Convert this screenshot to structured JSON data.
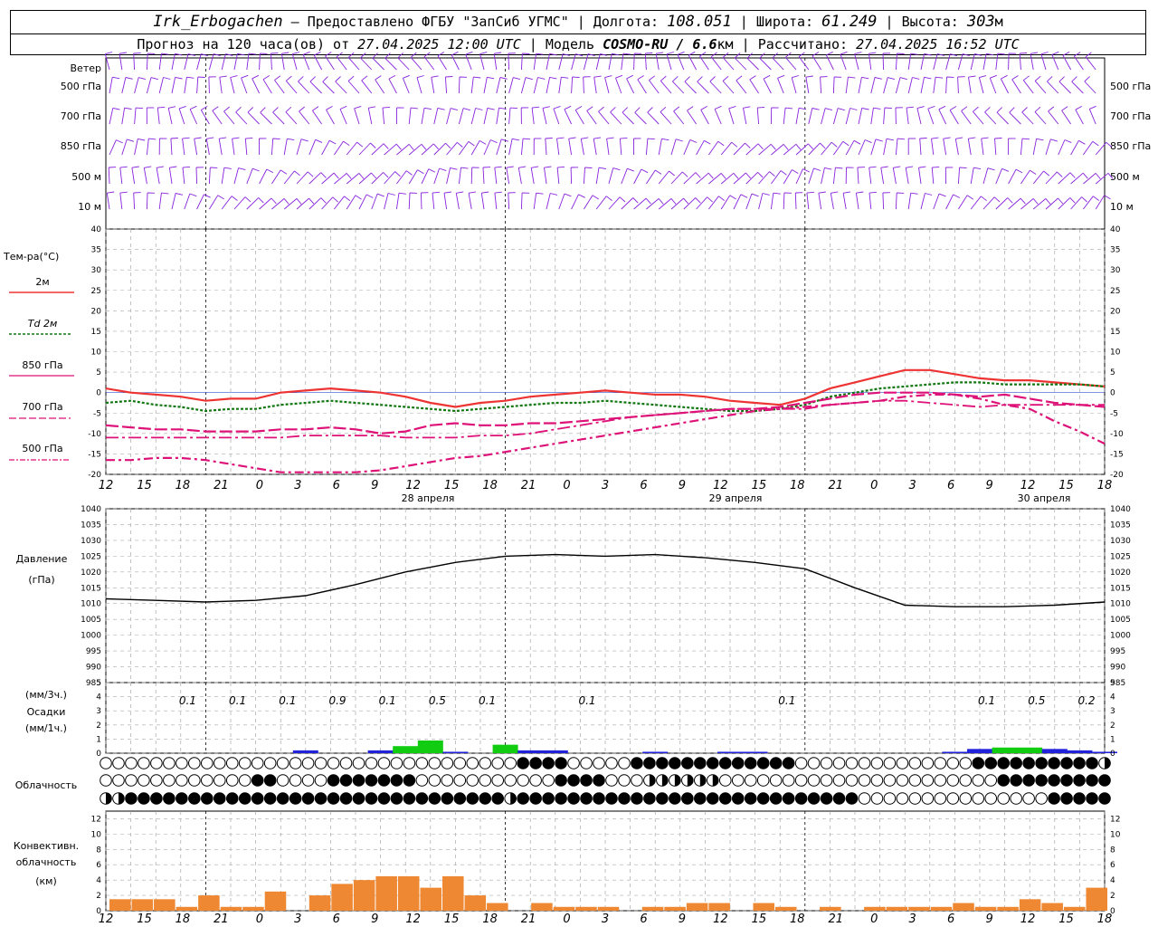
{
  "header": {
    "station": "Irk_Erbogachen",
    "provider": " – Предоставлено ФГБУ \"ЗапСиб УГМС\" ",
    "lon_label": "Долгота: ",
    "lon": "108.051",
    "lat_label": "Широта: ",
    "lat": "61.249",
    "alt_label": "Высота: ",
    "alt": "303",
    "alt_unit": "м",
    "fc_label": "Прогноз на 120 часа(ов) от ",
    "fc_start": "27.04.2025 12:00 UTC",
    "model_label": "Модель ",
    "model": "COSMO-RU / 6.6",
    "model_unit": "км",
    "calc_label": "Рассчитано: ",
    "calc_time": "27.04.2025 16:52 UTC"
  },
  "labels": {
    "wind": "Ветер",
    "wind_levels": [
      "500 гПа",
      "700 гПа",
      "850 гПа",
      "500  м",
      "10  м"
    ],
    "temp": "Тем-ра(°C)",
    "temp_series": [
      "2м",
      "Td  2м",
      "850 гПа",
      "700 гПа",
      "500 гПа"
    ],
    "pressure": [
      "Давление",
      "(гПа)"
    ],
    "precip": [
      "(мм/3ч.)",
      "Осадки",
      "(мм/1ч.)"
    ],
    "clouds": "Облачность",
    "conv": [
      "Конвективн.",
      "облачность",
      "(км)"
    ],
    "days": [
      "28 апреля",
      "29 апреля",
      "30 апреля"
    ]
  },
  "colors": {
    "t2m": "#ee3333",
    "td2m": "#117711",
    "t850": "#dd1177",
    "t700": "#dd1177",
    "t500": "#dd1177",
    "wind": "#8822dd",
    "precip_low": "#2222dd",
    "precip_high": "#11cc11",
    "conv": "#ee8833"
  },
  "chart_data": [
    {
      "type": "line",
      "title": "Тем-ра(°C)",
      "x_hours": [
        0,
        3,
        6,
        9,
        12,
        15,
        18,
        21,
        24,
        27,
        30,
        33,
        36,
        39,
        42,
        45,
        48,
        51,
        54,
        57,
        60,
        63,
        66,
        69,
        72,
        75,
        78,
        81,
        84,
        87,
        90,
        93,
        96,
        99,
        102,
        105,
        108,
        111,
        114,
        117,
        120
      ],
      "x_ticks": [
        "12",
        "15",
        "18",
        "21",
        "0",
        "3",
        "6",
        "9",
        "12",
        "15",
        "18",
        "21",
        "0",
        "3",
        "6",
        "9",
        "12",
        "15",
        "18",
        "21",
        "0",
        "3",
        "6",
        "9",
        "12",
        "15",
        "18"
      ],
      "ylim": [
        -20,
        40
      ],
      "series": [
        {
          "name": "2м",
          "values": [
            1,
            0,
            -0.5,
            -1,
            -2,
            -1.5,
            -1.5,
            0,
            0.5,
            1,
            0.5,
            0,
            -1,
            -2.5,
            -3.5,
            -2.5,
            -2,
            -1,
            -0.5,
            0,
            0.5,
            0,
            -0.5,
            -0.5,
            -1,
            -2,
            -2.5,
            -3,
            -1.5,
            1,
            2.5,
            4,
            5.5,
            5.5,
            4.5,
            3.5,
            3,
            3,
            2.5,
            2,
            1.5
          ]
        },
        {
          "name": "Td 2м",
          "values": [
            -2.5,
            -2,
            -3,
            -3.5,
            -4.5,
            -4,
            -4,
            -3,
            -2.5,
            -2,
            -2.5,
            -3,
            -3.5,
            -4,
            -4.5,
            -4,
            -3.5,
            -3,
            -2.5,
            -2.5,
            -2,
            -2.5,
            -3,
            -3.5,
            -4,
            -4.5,
            -4.5,
            -4,
            -3,
            -1,
            0,
            1,
            1.5,
            2,
            2.5,
            2.5,
            2,
            2,
            2,
            2,
            1.5
          ]
        },
        {
          "name": "850 гПа",
          "values": [
            -8,
            -8.5,
            -9,
            -9,
            -9.5,
            -9.5,
            -9.5,
            -9,
            -9,
            -8.5,
            -9,
            -10,
            -9.5,
            -8,
            -7.5,
            -8,
            -8,
            -7.5,
            -7.5,
            -7,
            -6.5,
            -6,
            -5.5,
            -5,
            -4.5,
            -4,
            -4,
            -3.5,
            -2.5,
            -1.5,
            -0.5,
            0,
            0,
            0,
            -0.5,
            -1,
            -0.5,
            -1.5,
            -2.5,
            -3,
            -3.5
          ]
        },
        {
          "name": "700 гПа",
          "values": [
            -11,
            -11,
            -11,
            -11,
            -11,
            -11,
            -11,
            -11,
            -10.5,
            -10.5,
            -10.5,
            -10.5,
            -11,
            -11,
            -11,
            -10.5,
            -10.5,
            -10,
            -9,
            -8,
            -7,
            -6,
            -5.5,
            -5,
            -4.5,
            -4,
            -4,
            -4,
            -4,
            -3,
            -2.5,
            -2,
            -2,
            -2.5,
            -3,
            -3.5,
            -3,
            -3,
            -3,
            -3,
            -3
          ]
        },
        {
          "name": "500 гПа",
          "values": [
            -16.5,
            -16.5,
            -16,
            -16,
            -16.5,
            -17.5,
            -18.5,
            -19.5,
            -19.5,
            -19.5,
            -19.5,
            -19,
            -18,
            -17,
            -16,
            -15.5,
            -14.5,
            -13.5,
            -12.5,
            -11.5,
            -10.5,
            -9.5,
            -8.5,
            -7.5,
            -6.5,
            -5.5,
            -4.5,
            -4,
            -3.5,
            -3,
            -2.5,
            -2,
            -1,
            -0.5,
            -0.5,
            -1.5,
            -3,
            -4,
            -7,
            -9.5,
            -12.5
          ]
        }
      ]
    },
    {
      "type": "line",
      "title": "Давление",
      "ylabel": "(гПа)",
      "ylim": [
        985,
        1040
      ],
      "x_hours": [
        0,
        6,
        12,
        18,
        24,
        30,
        36,
        42,
        48,
        54,
        60,
        66,
        72,
        78,
        84,
        90,
        96,
        102,
        108,
        114,
        120
      ],
      "series": [
        {
          "name": "Давление",
          "values": [
            1011.5,
            1011,
            1010.5,
            1011,
            1012.5,
            1016,
            1020,
            1023,
            1025,
            1025.5,
            1025,
            1025.5,
            1024.5,
            1023,
            1021,
            1015,
            1009.5,
            1009,
            1009,
            1009.5,
            1010.5
          ]
        }
      ]
    },
    {
      "type": "bar",
      "title": "Осадки",
      "ylim": [
        0,
        5
      ],
      "x_hours": [
        15,
        24,
        30,
        33,
        36,
        39,
        42,
        45,
        48,
        51,
        54,
        57,
        66,
        69,
        72,
        75,
        78,
        81,
        84,
        87,
        90,
        93,
        96,
        99,
        102,
        105,
        108,
        111,
        114,
        117,
        120
      ],
      "values_mm_1h": [
        0,
        0.2,
        0,
        0.2,
        0.5,
        0.9,
        0.1,
        0,
        0.6,
        0.2,
        0.2,
        0,
        0.1,
        0,
        0,
        0.1,
        0.1,
        0,
        0,
        0,
        0,
        0,
        0,
        0,
        0.1,
        0.3,
        0.4,
        0.4,
        0.3,
        0.2,
        0.1
      ],
      "labels_3h": [
        {
          "h": 12,
          "v": "0.1"
        },
        {
          "h": 18,
          "v": "0.1"
        },
        {
          "h": 24,
          "v": "0.1"
        },
        {
          "h": 30,
          "v": "0.9"
        },
        {
          "h": 36,
          "v": "0.1"
        },
        {
          "h": 42,
          "v": "0.5"
        },
        {
          "h": 48,
          "v": "0.1"
        },
        {
          "h": 60,
          "v": "0.1"
        },
        {
          "h": 84,
          "v": "0.1"
        },
        {
          "h": 108,
          "v": "0.1"
        },
        {
          "h": 114,
          "v": "0.5"
        },
        {
          "h": 120,
          "v": "0.2"
        }
      ]
    },
    {
      "type": "bar",
      "title": "Конвективн. облачность",
      "ylabel": "(км)",
      "ylim": [
        0,
        13
      ],
      "values": [
        1.5,
        1.5,
        1.5,
        0.5,
        2,
        0.5,
        0.5,
        2.5,
        0,
        2,
        3.5,
        4,
        4.5,
        4.5,
        3,
        4.5,
        2,
        1,
        0,
        1,
        0.5,
        0.5,
        0.5,
        0,
        0.5,
        0.5,
        1,
        1,
        0,
        1,
        0.5,
        0,
        0.5,
        0,
        0.5,
        0.5,
        0.5,
        0.5,
        1,
        0.5,
        0.5,
        1.5,
        1,
        0.5,
        3
      ]
    }
  ]
}
